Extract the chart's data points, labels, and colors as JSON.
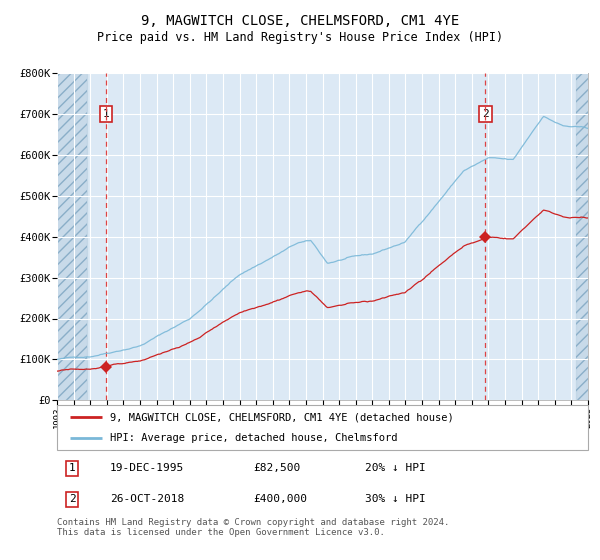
{
  "title": "9, MAGWITCH CLOSE, CHELMSFORD, CM1 4YE",
  "subtitle": "Price paid vs. HM Land Registry's House Price Index (HPI)",
  "background_color": "#ffffff",
  "plot_bg_color": "#dce9f5",
  "hatch_color": "#b8cfe0",
  "grid_color": "#ffffff",
  "hpi_line_color": "#7ab8d8",
  "price_line_color": "#cc2222",
  "dashed_line_color": "#cc4444",
  "sale1_date": 1995.97,
  "sale1_price": 82500,
  "sale2_date": 2018.82,
  "sale2_price": 400000,
  "xmin": 1993,
  "xmax": 2025,
  "ymin": 0,
  "ymax": 800000,
  "legend1": "9, MAGWITCH CLOSE, CHELMSFORD, CM1 4YE (detached house)",
  "legend2": "HPI: Average price, detached house, Chelmsford",
  "annotation1_label": "1",
  "annotation1_date": "19-DEC-1995",
  "annotation1_price": "£82,500",
  "annotation1_hpi": "20% ↓ HPI",
  "annotation2_label": "2",
  "annotation2_date": "26-OCT-2018",
  "annotation2_price": "£400,000",
  "annotation2_hpi": "30% ↓ HPI",
  "footer": "Contains HM Land Registry data © Crown copyright and database right 2024.\nThis data is licensed under the Open Government Licence v3.0.",
  "yticks": [
    0,
    100000,
    200000,
    300000,
    400000,
    500000,
    600000,
    700000,
    800000
  ],
  "ytick_labels": [
    "£0",
    "£100K",
    "£200K",
    "£300K",
    "£400K",
    "£500K",
    "£600K",
    "£700K",
    "£800K"
  ]
}
